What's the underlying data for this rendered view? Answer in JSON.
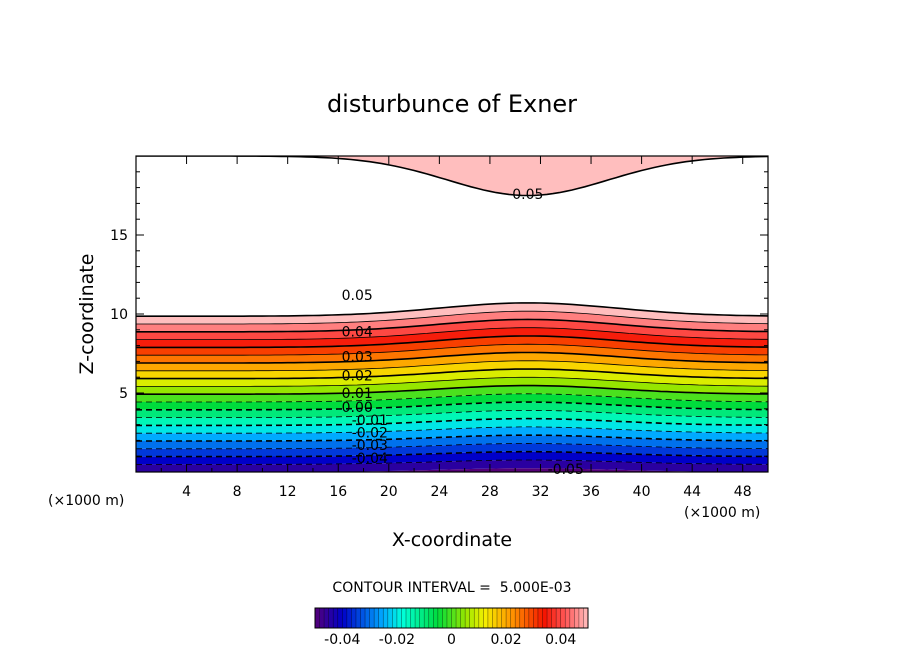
{
  "chart_data": {
    "type": "contour",
    "title": "disturbunce of Exner",
    "xlabel": "X-coordinate",
    "ylabel": "Z-coordinate",
    "x_unit": "(×1000 m)",
    "y_unit": "(×1000 m)",
    "xlim": [
      0,
      50
    ],
    "ylim": [
      0,
      20
    ],
    "x_ticks": [
      "4",
      "8",
      "12",
      "16",
      "20",
      "24",
      "28",
      "32",
      "36",
      "40",
      "44",
      "48"
    ],
    "y_ticks": [
      "5",
      "10",
      "15"
    ],
    "contour_interval_text": "CONTOUR INTERVAL =  5.000E-03",
    "contour_interval": 0.005,
    "level_range": [
      -0.05,
      0.05
    ],
    "negative_contours_dashed": true,
    "contour_labels": [
      {
        "text": "0.05",
        "x": 31,
        "z": 17.6
      },
      {
        "text": "0.05",
        "x": 17.5,
        "z": 11.2
      },
      {
        "text": "0.04",
        "x": 17.5,
        "z": 8.9
      },
      {
        "text": "0.03",
        "x": 17.5,
        "z": 7.3
      },
      {
        "text": "0.02",
        "x": 17.5,
        "z": 6.1
      },
      {
        "text": "0.01",
        "x": 17.5,
        "z": 5.0
      },
      {
        "text": "0.00",
        "x": 17.5,
        "z": 4.1
      },
      {
        "text": "-0.01",
        "x": 18.5,
        "z": 3.3
      },
      {
        "text": "-0.02",
        "x": 18.5,
        "z": 2.5
      },
      {
        "text": "-0.03",
        "x": 18.5,
        "z": 1.7
      },
      {
        "text": "-0.04",
        "x": 18.5,
        "z": 0.9
      },
      {
        "text": "-0.05",
        "x": 34,
        "z": 0.2
      }
    ],
    "colorbar": {
      "ticks": [
        "-0.04",
        "-0.02",
        "0",
        "0.02",
        "0.04"
      ],
      "range": [
        -0.05,
        0.05
      ]
    }
  }
}
